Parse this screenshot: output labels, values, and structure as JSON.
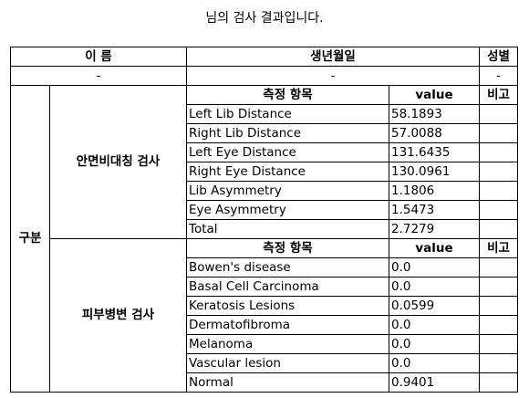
{
  "title": "님의 검사 결과입니다.",
  "header": {
    "name_label": "이 름",
    "birth_label": "생년월일",
    "gender_label": "성별",
    "name_value": "-",
    "birth_value": "-",
    "gender_value": "-"
  },
  "category_label": "구분",
  "sections": [
    {
      "name": "안면비대칭 검사",
      "col_item": "측정 항목",
      "col_value": "value",
      "col_note": "비고",
      "rows": [
        {
          "item": "Left Lib Distance",
          "value": "58.1893",
          "note": ""
        },
        {
          "item": "Right Lib Distance",
          "value": "57.0088",
          "note": ""
        },
        {
          "item": "Left Eye Distance",
          "value": "131.6435",
          "note": ""
        },
        {
          "item": "Right Eye Distance",
          "value": "130.0961",
          "note": ""
        },
        {
          "item": "Lib Asymmetry",
          "value": "1.1806",
          "note": ""
        },
        {
          "item": "Eye Asymmetry",
          "value": "1.5473",
          "note": ""
        },
        {
          "item": "Total",
          "value": "2.7279",
          "note": ""
        }
      ]
    },
    {
      "name": "피부병변 검사",
      "col_item": "측정 항목",
      "col_value": "value",
      "col_note": "비고",
      "rows": [
        {
          "item": "Bowen's disease",
          "value": "0.0",
          "note": ""
        },
        {
          "item": "Basal Cell Carcinoma",
          "value": "0.0",
          "note": ""
        },
        {
          "item": "Keratosis Lesions",
          "value": "0.0599",
          "note": ""
        },
        {
          "item": "Dermatofibroma",
          "value": "0.0",
          "note": ""
        },
        {
          "item": "Melanoma",
          "value": "0.0",
          "note": ""
        },
        {
          "item": "Vascular lesion",
          "value": "0.0",
          "note": ""
        },
        {
          "item": "Normal",
          "value": "0.9401",
          "note": ""
        }
      ]
    }
  ]
}
